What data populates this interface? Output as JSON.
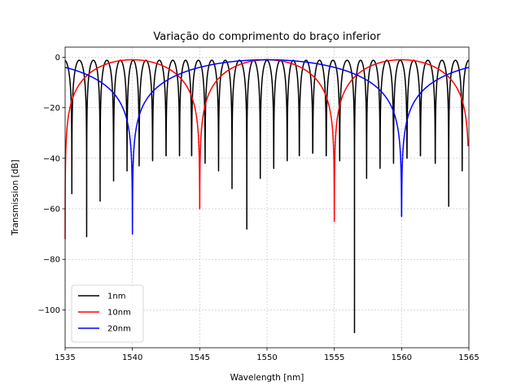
{
  "chart_data": {
    "type": "line",
    "title": "Variação do comprimento do braço inferior",
    "xlabel": "Wavelength [nm]",
    "ylabel": "Transmission [dB]",
    "xlim": [
      1535,
      1565
    ],
    "ylim": [
      -115,
      4
    ],
    "xticks": [
      1535,
      1540,
      1545,
      1550,
      1555,
      1560,
      1565
    ],
    "yticks": [
      0,
      -20,
      -40,
      -60,
      -80,
      -100
    ],
    "grid": true,
    "legend_position": "lower-left",
    "series": [
      {
        "name": "1nm",
        "color": "#000000",
        "peak_db": -1.2,
        "dips": [
          [
            1535.5,
            -54
          ],
          [
            1536.6,
            -71
          ],
          [
            1537.6,
            -57
          ],
          [
            1538.6,
            -49
          ],
          [
            1539.6,
            -45
          ],
          [
            1540.5,
            -43
          ],
          [
            1541.5,
            -41
          ],
          [
            1542.5,
            -39
          ],
          [
            1543.5,
            -39
          ],
          [
            1544.4,
            -39
          ],
          [
            1545.4,
            -42
          ],
          [
            1546.4,
            -45
          ],
          [
            1547.4,
            -52
          ],
          [
            1548.5,
            -68
          ],
          [
            1549.5,
            -48
          ],
          [
            1550.5,
            -44
          ],
          [
            1551.5,
            -41
          ],
          [
            1552.4,
            -39
          ],
          [
            1553.4,
            -38
          ],
          [
            1554.4,
            -39
          ],
          [
            1555.4,
            -41
          ],
          [
            1556.5,
            -109
          ],
          [
            1557.4,
            -48
          ],
          [
            1558.4,
            -44
          ],
          [
            1559.4,
            -42
          ],
          [
            1560.4,
            -40
          ],
          [
            1561.4,
            -39
          ],
          [
            1562.5,
            -42
          ],
          [
            1563.5,
            -59
          ],
          [
            1564.5,
            -45
          ]
        ]
      },
      {
        "name": "10nm",
        "color": "#ff0000",
        "peak_db": -1.0,
        "dips": [
          [
            1535.0,
            -72
          ],
          [
            1545.0,
            -60
          ],
          [
            1555.0,
            -65
          ],
          [
            1565.0,
            -35
          ]
        ]
      },
      {
        "name": "20nm",
        "color": "#0000ff",
        "peak_db": -1.0,
        "dips": [
          [
            1540.0,
            -70
          ],
          [
            1560.0,
            -63
          ]
        ]
      }
    ]
  }
}
